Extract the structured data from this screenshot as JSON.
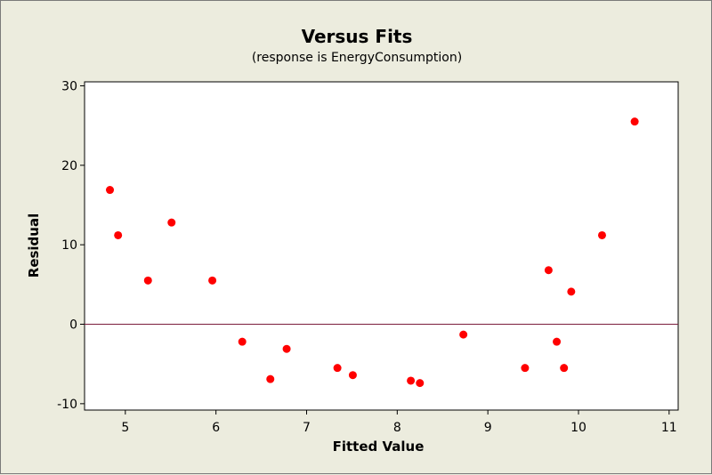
{
  "chart_data": {
    "type": "scatter",
    "title": "Versus Fits",
    "subtitle": "(response is EnergyConsumption)",
    "xlabel": "Fitted Value",
    "ylabel": "Residual",
    "xlim": [
      4.55,
      11.1
    ],
    "ylim": [
      -10.8,
      30.5
    ],
    "xticks": [
      5,
      6,
      7,
      8,
      9,
      10,
      11
    ],
    "yticks": [
      -10,
      0,
      10,
      20,
      30
    ],
    "reference_line_y": 0,
    "grid": false,
    "colors": {
      "point": "#ff0000",
      "reference_line": "#7b1e3c",
      "plot_bg": "#ffffff",
      "frame_bg": "#ececde"
    },
    "points": [
      {
        "x": 4.83,
        "y": 16.9
      },
      {
        "x": 4.92,
        "y": 11.2
      },
      {
        "x": 5.25,
        "y": 5.5
      },
      {
        "x": 5.51,
        "y": 12.8
      },
      {
        "x": 5.96,
        "y": 5.5
      },
      {
        "x": 6.29,
        "y": -2.2
      },
      {
        "x": 6.6,
        "y": -6.9
      },
      {
        "x": 6.78,
        "y": -3.1
      },
      {
        "x": 7.34,
        "y": -5.5
      },
      {
        "x": 7.51,
        "y": -6.4
      },
      {
        "x": 8.15,
        "y": -7.1
      },
      {
        "x": 8.25,
        "y": -7.4
      },
      {
        "x": 8.73,
        "y": -1.3
      },
      {
        "x": 9.41,
        "y": -5.5
      },
      {
        "x": 9.67,
        "y": 6.8
      },
      {
        "x": 9.76,
        "y": -2.2
      },
      {
        "x": 9.84,
        "y": -5.5
      },
      {
        "x": 9.92,
        "y": 4.1
      },
      {
        "x": 10.26,
        "y": 11.2
      },
      {
        "x": 10.62,
        "y": 25.5
      }
    ]
  }
}
